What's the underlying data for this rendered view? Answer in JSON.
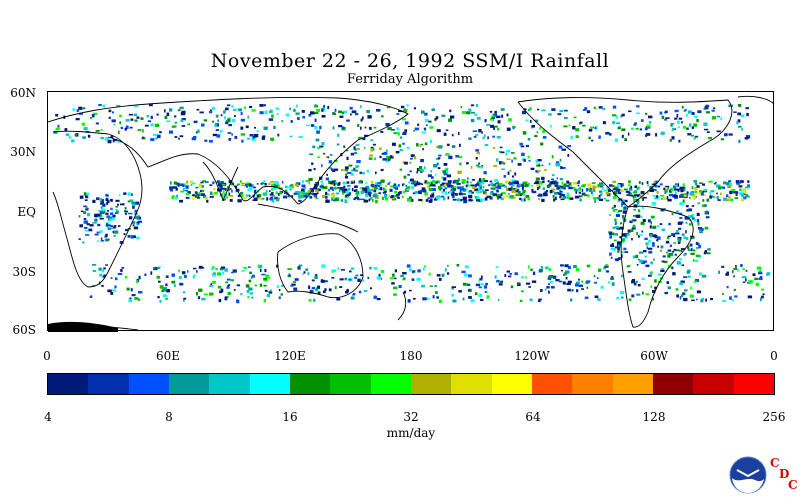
{
  "title": "November 22 - 26, 1992 SSM/I Rainfall",
  "subtitle": "Ferriday Algorithm",
  "map": {
    "lat_labels": [
      "60N",
      "30N",
      "EQ",
      "30S",
      "60S"
    ],
    "lon_labels": [
      "0",
      "60E",
      "120E",
      "180",
      "120W",
      "60W",
      "0"
    ],
    "lat_range": [
      -60,
      60
    ],
    "lon_range": [
      0,
      360
    ]
  },
  "colorbar": {
    "colors": [
      "#001a7a",
      "#0030b0",
      "#0050ff",
      "#009a9a",
      "#00c8c8",
      "#00ffff",
      "#009000",
      "#00c000",
      "#00ff00",
      "#b0b000",
      "#e0e000",
      "#ffff00",
      "#ff5000",
      "#ff8000",
      "#ffa000",
      "#900000",
      "#c80000",
      "#ff0000"
    ],
    "tick_labels": [
      "4",
      "8",
      "16",
      "32",
      "64",
      "128",
      "256"
    ],
    "units": "mm/day",
    "scale": "log"
  },
  "logo": {
    "name": "NOAA",
    "letters": [
      "C",
      "D",
      "C"
    ]
  }
}
